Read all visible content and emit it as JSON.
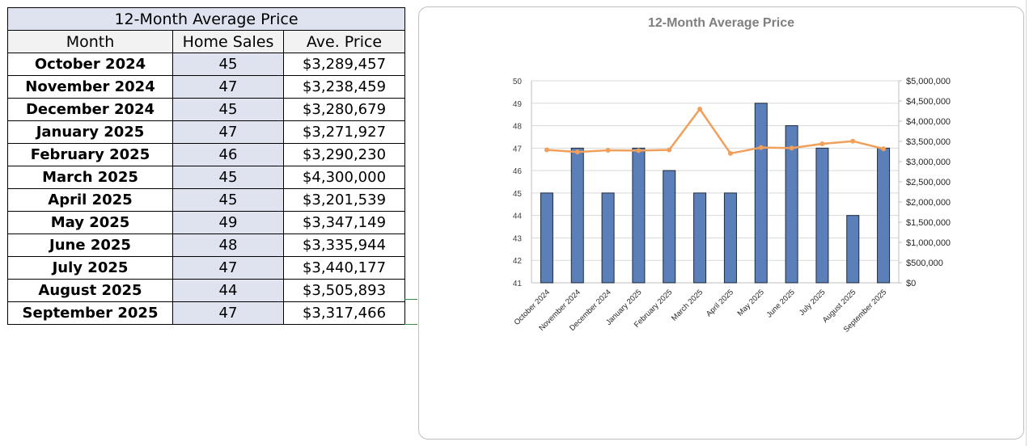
{
  "table": {
    "title": "12-Month Average Price",
    "headers": [
      "Month",
      "Home Sales",
      "Ave. Price"
    ],
    "rows": [
      [
        "October 2024",
        "45",
        "$3,289,457"
      ],
      [
        "November 2024",
        "47",
        "$3,238,459"
      ],
      [
        "December 2024",
        "45",
        "$3,280,679"
      ],
      [
        "January 2025",
        "47",
        "$3,271,927"
      ],
      [
        "February 2025",
        "46",
        "$3,290,230"
      ],
      [
        "March 2025",
        "45",
        "$4,300,000"
      ],
      [
        "April 2025",
        "45",
        "$3,201,539"
      ],
      [
        "May 2025",
        "49",
        "$3,347,149"
      ],
      [
        "June 2025",
        "48",
        "$3,335,944"
      ],
      [
        "July 2025",
        "47",
        "$3,440,177"
      ],
      [
        "August 2025",
        "44",
        "$3,505,893"
      ],
      [
        "September 2025",
        "47",
        "$3,317,466"
      ]
    ]
  },
  "chart_data": {
    "type": "bar",
    "title": "12-Month Average Price",
    "categories": [
      "October 2024",
      "November 2024",
      "December 2024",
      "January 2025",
      "February 2025",
      "March 2025",
      "April 2025",
      "May 2025",
      "June 2025",
      "July 2025",
      "August 2025",
      "September 2025"
    ],
    "series": [
      {
        "name": "Home Sales",
        "type": "bar",
        "axis": "left",
        "color": "#5b7fb8",
        "values": [
          45,
          47,
          45,
          47,
          46,
          45,
          45,
          49,
          48,
          47,
          44,
          47
        ]
      },
      {
        "name": "Ave. Price",
        "type": "line",
        "axis": "right",
        "color": "#f0a05a",
        "values": [
          3289457,
          3238459,
          3280679,
          3271927,
          3290230,
          4300000,
          3201539,
          3347149,
          3335944,
          3440177,
          3505893,
          3317466
        ]
      }
    ],
    "ylim_left": [
      41,
      50
    ],
    "left_ticks": [
      "41",
      "42",
      "43",
      "44",
      "45",
      "46",
      "47",
      "48",
      "49",
      "50"
    ],
    "ylim_right": [
      0,
      5000000
    ],
    "right_ticks": [
      "$0",
      "$500,000",
      "$1,000,000",
      "$1,500,000",
      "$2,000,000",
      "$2,500,000",
      "$3,000,000",
      "$3,500,000",
      "$4,000,000",
      "$4,500,000",
      "$5,000,000"
    ],
    "grid": true
  }
}
